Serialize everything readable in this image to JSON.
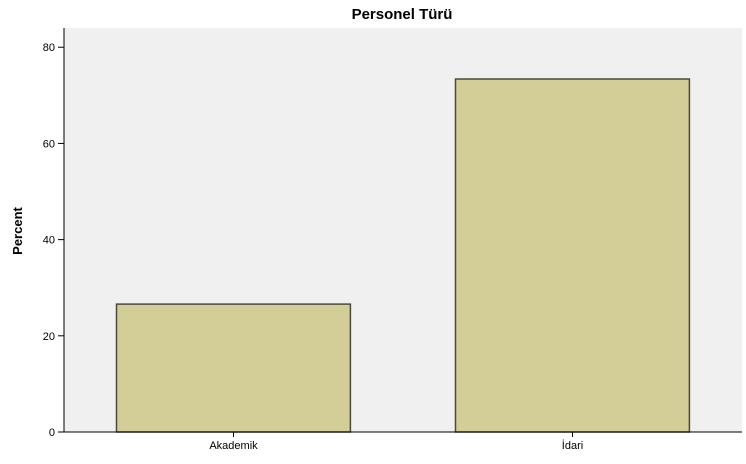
{
  "chart_data": {
    "type": "bar",
    "title": "Personel Türü",
    "xlabel": "",
    "ylabel": "Percent",
    "categories": [
      "Akademik",
      "İdari"
    ],
    "values": [
      26.6,
      73.4
    ],
    "ylim": [
      0,
      84
    ],
    "yticks": [
      0,
      20,
      40,
      60,
      80
    ],
    "grid": false,
    "colors": {
      "bar_fill": "#d3ce98",
      "bar_stroke": "#4a4a3a",
      "plot_background": "#f0f0f0",
      "axis": "#000000"
    }
  }
}
